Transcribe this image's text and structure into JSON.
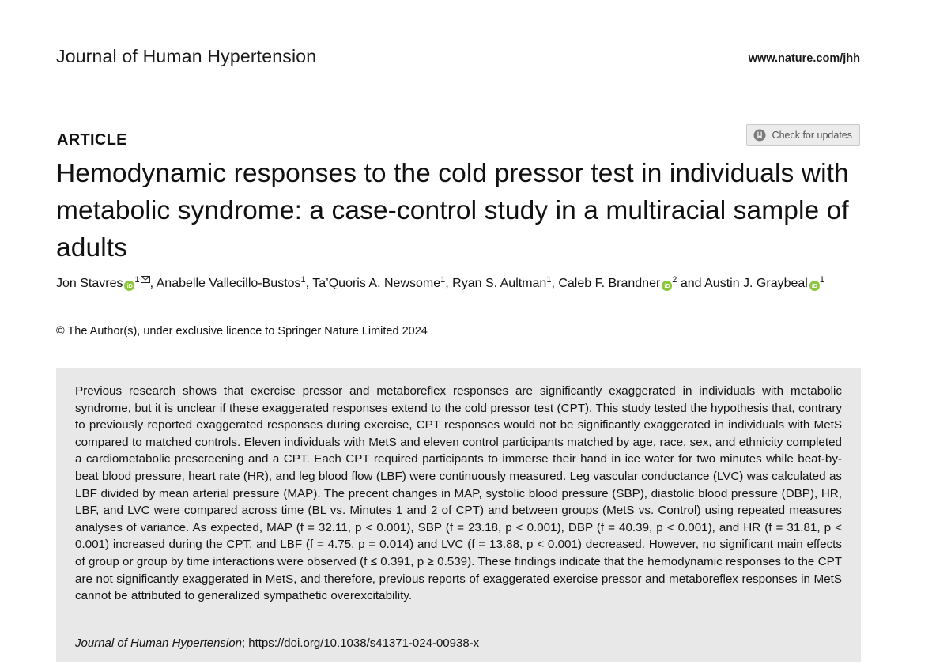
{
  "header": {
    "journal_name": "Journal of Human Hypertension",
    "journal_url": "www.nature.com/jhh"
  },
  "article": {
    "label": "ARTICLE",
    "check_updates_label": "Check for updates",
    "title": "Hemodynamic responses to the cold pressor test in individuals with metabolic syndrome: a case-control study in a multiracial sample of adults",
    "authors": [
      {
        "name": "Jon Stavres",
        "affil": "1",
        "orcid": true,
        "corresponding": true,
        "sep": ", "
      },
      {
        "name": "Anabelle Vallecillo-Bustos",
        "affil": "1",
        "orcid": false,
        "corresponding": false,
        "sep": ", "
      },
      {
        "name": "Ta’Quoris A. Newsome",
        "affil": "1",
        "orcid": false,
        "corresponding": false,
        "sep": ", "
      },
      {
        "name": "Ryan S. Aultman",
        "affil": "1",
        "orcid": false,
        "corresponding": false,
        "sep": ", "
      },
      {
        "name": "Caleb F. Brandner",
        "affil": "2",
        "orcid": true,
        "corresponding": false,
        "sep": " and "
      },
      {
        "name": "Austin J. Graybeal",
        "affil": "1",
        "orcid": true,
        "corresponding": false,
        "sep": ""
      }
    ],
    "orcid_glyph": "iD",
    "copyright": "© The Author(s), under exclusive licence to Springer Nature Limited 2024",
    "abstract": "Previous research shows that exercise pressor and metaboreflex responses are significantly exaggerated in individuals with metabolic syndrome, but it is unclear if these exaggerated responses extend to the cold pressor test (CPT). This study tested the hypothesis that, contrary to previously reported exaggerated responses during exercise, CPT responses would not be significantly exaggerated in individuals with MetS compared to matched controls. Eleven individuals with MetS and eleven control participants matched by age, race, sex, and ethnicity completed a cardiometabolic prescreening and a CPT. Each CPT required participants to immerse their hand in ice water for two minutes while beat-by-beat blood pressure, heart rate (HR), and leg blood flow (LBF) were continuously measured. Leg vascular conductance (LVC) was calculated as LBF divided by mean arterial pressure (MAP). The precent changes in MAP, systolic blood pressure (SBP), diastolic blood pressure (DBP), HR, LBF, and LVC were compared across time (BL vs. Minutes 1 and 2 of CPT) and between groups (MetS vs. Control) using repeated measures analyses of variance. As expected, MAP (f = 32.11, p < 0.001), SBP (f = 23.18, p < 0.001), DBP (f = 40.39, p < 0.001), and HR (f = 31.81, p < 0.001) increased during the CPT, and LBF (f = 4.75, p = 0.014) and LVC (f = 13.88, p < 0.001) decreased. However, no significant main effects of group or group by time interactions were observed (f ≤ 0.391, p ≥ 0.539). These findings indicate that the hemodynamic responses to the CPT are not significantly exaggerated in MetS, and therefore, previous reports of exaggerated exercise pressor and metaboreflex responses in MetS cannot be attributed to generalized sympathetic overexcitability.",
    "citation": {
      "journal": "Journal of Human Hypertension",
      "rest": "; https://doi.org/10.1038/s41371-024-00938-x"
    }
  }
}
